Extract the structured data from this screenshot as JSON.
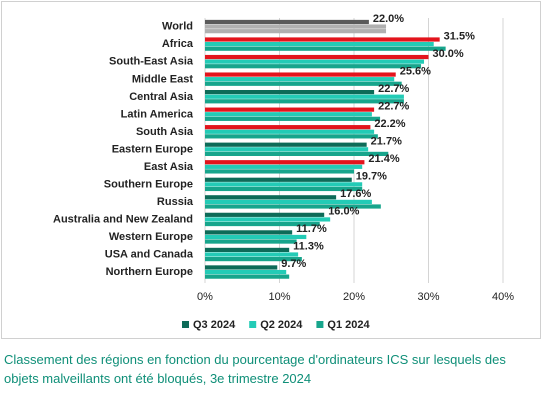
{
  "chart_data": {
    "type": "hbar-grouped",
    "categories": [
      "World",
      "Africa",
      "South-East Asia",
      "Middle East",
      "Central Asia",
      "Latin America",
      "South Asia",
      "Eastern Europe",
      "East Asia",
      "Southern Europe",
      "Russia",
      "Australia and New Zealand",
      "Western Europe",
      "USA and Canada",
      "Northern Europe"
    ],
    "series": [
      {
        "name": "Q3 2024",
        "color": "#0d6b58",
        "colors": [
          "#5a5a5a",
          "#e3141c",
          "#e3141c",
          "#e3141c",
          "#0d6b58",
          "#e3141c",
          "#e3141c",
          "#0d6b58",
          "#e3141c",
          "#0d6b58",
          "#0d6b58",
          "#0d6b58",
          "#0d6b58",
          "#0d6b58",
          "#0d6b58"
        ],
        "values": [
          22.0,
          31.5,
          30.0,
          25.6,
          22.7,
          22.7,
          22.2,
          21.7,
          21.4,
          19.7,
          17.6,
          16.0,
          11.7,
          11.3,
          9.7
        ],
        "value_labels": [
          "22.0%",
          "31.5%",
          "30.0%",
          "25.6%",
          "22.7%",
          "22.7%",
          "22.2%",
          "21.7%",
          "21.4%",
          "19.7%",
          "17.6%",
          "16.0%",
          "11.7%",
          "11.3%",
          "9.7%"
        ]
      },
      {
        "name": "Q2 2024",
        "color": "#23cbb6",
        "colors": [
          "#b0b0b0",
          "#23cbb6",
          "#23cbb6",
          "#23cbb6",
          "#23cbb6",
          "#23cbb6",
          "#23cbb6",
          "#23cbb6",
          "#23cbb6",
          "#23cbb6",
          "#23cbb6",
          "#23cbb6",
          "#23cbb6",
          "#23cbb6",
          "#23cbb6"
        ],
        "values": [
          24.3,
          30.7,
          29.4,
          25.4,
          26.7,
          22.4,
          22.7,
          21.9,
          21.1,
          21.1,
          22.4,
          16.8,
          13.6,
          12.5,
          10.9
        ]
      },
      {
        "name": "Q1 2024",
        "color": "#17a58c",
        "colors": [
          "#b0b0b0",
          "#17a58c",
          "#17a58c",
          "#17a58c",
          "#17a58c",
          "#17a58c",
          "#17a58c",
          "#17a58c",
          "#17a58c",
          "#17a58c",
          "#17a58c",
          "#17a58c",
          "#17a58c",
          "#17a58c",
          "#17a58c"
        ],
        "values": [
          24.3,
          32.3,
          29.0,
          26.4,
          26.7,
          23.5,
          23.2,
          24.6,
          20.0,
          21.1,
          23.6,
          15.4,
          12.3,
          13.0,
          11.3
        ]
      }
    ],
    "xlim": [
      0,
      40
    ],
    "xticks": [
      {
        "value": 0,
        "label": "0%"
      },
      {
        "value": 10,
        "label": "10%"
      },
      {
        "value": 20,
        "label": "20%"
      },
      {
        "value": 30,
        "label": "30%"
      },
      {
        "value": 40,
        "label": "40%"
      }
    ],
    "grid": true,
    "legend": "bottom",
    "caption": "Classement des régions en fonction du pourcentage d'ordinateurs ICS sur lesquels des objets malveillants ont été bloqués, 3e trimestre 2024"
  }
}
